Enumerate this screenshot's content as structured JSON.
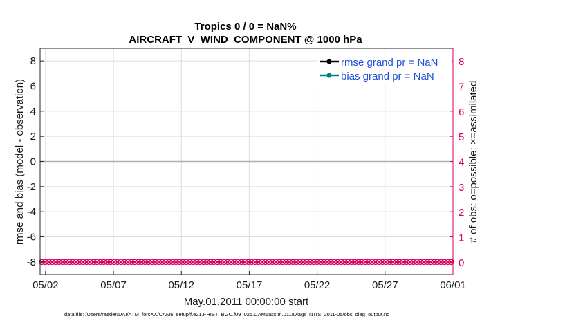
{
  "chart_data": {
    "type": "line",
    "title_line1": "Tropics 0 / 0 = NaN%",
    "title_line2": "AIRCRAFT_V_WIND_COMPONENT @ 1000 hPa",
    "xlabel": "May.01,2011 00:00:00 start",
    "ylabel_left": "rmse and bias (model - observation)",
    "ylabel_right": "# of obs: o=possible; ×=assimilated",
    "x_tick_labels": [
      "05/02",
      "05/07",
      "05/12",
      "05/17",
      "05/22",
      "05/27",
      "06/01"
    ],
    "x_tick_days": [
      1,
      6,
      11,
      16,
      21,
      26,
      31
    ],
    "xlim_days": [
      0.6,
      31
    ],
    "y_left_ticks": [
      -8,
      -6,
      -4,
      -2,
      0,
      2,
      4,
      6,
      8
    ],
    "y_left_tick_labels": [
      "-8",
      "-6",
      "-4",
      "-2",
      "0",
      "2",
      "4",
      "6",
      "8"
    ],
    "ylim_left": [
      -9,
      9
    ],
    "y_right_ticks": [
      0,
      1,
      2,
      3,
      4,
      5,
      6,
      7,
      8
    ],
    "y_right_tick_labels": [
      "0",
      "1",
      "2",
      "3",
      "4",
      "5",
      "6",
      "7",
      "8"
    ],
    "ylim_right": [
      -0.5,
      8.5
    ],
    "grid": true,
    "zero_line": 0,
    "series": [
      {
        "name": "rmse grand pr = NaN",
        "color": "#000000",
        "values": []
      },
      {
        "name": "bias grand pr = NaN",
        "color": "#007f7f",
        "values": []
      },
      {
        "name": "obs possible",
        "color": "#d6005e",
        "marker": "o",
        "value": 0,
        "count": 120
      },
      {
        "name": "obs assimilated",
        "color": "#d6005e",
        "marker": "x",
        "value": 0,
        "count": 120
      }
    ],
    "legend": [
      "rmse grand pr = NaN",
      "bias grand pr = NaN"
    ],
    "legend_position": "top-right"
  },
  "colors": {
    "right_axis": "#d6005e",
    "legend_text": "#1f4fd6",
    "grid": "#dcdcdc",
    "zero_line": "#b0b0b0"
  },
  "footer": "data file: /Users/raeder/DAI/ATM_forcXX/CAM6_setup/f.e21.FHIST_BGC.f09_025.CAM6assim.011/Diags_NTrS_2011-05/obs_diag_output.nc"
}
